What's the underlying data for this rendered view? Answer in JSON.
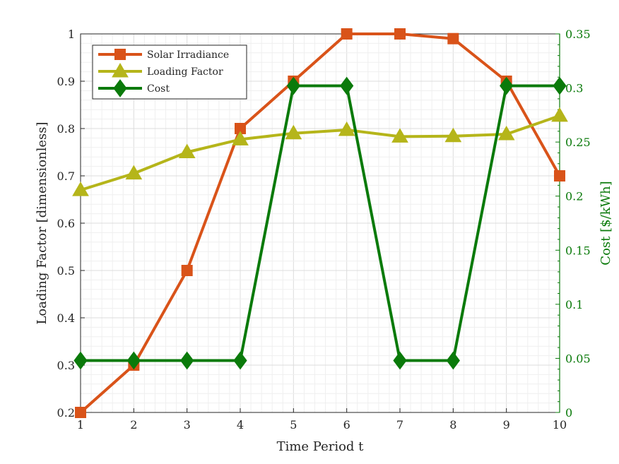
{
  "chart_data": {
    "type": "line",
    "xlabel": "Time Period t",
    "ylabel_left": "Loading Factor [dimensionless]",
    "ylabel_right": "Cost  [$/kWh]",
    "x": [
      1,
      2,
      3,
      4,
      5,
      6,
      7,
      8,
      9,
      10
    ],
    "xlim": [
      1,
      10
    ],
    "ylim_left": [
      0.2,
      1
    ],
    "ylim_right": [
      0,
      0.35
    ],
    "x_ticks": [
      "1",
      "2",
      "3",
      "4",
      "5",
      "6",
      "7",
      "8",
      "9",
      "10"
    ],
    "y_left_ticks": [
      "0.2",
      "0.3",
      "0.4",
      "0.5",
      "0.6",
      "0.7",
      "0.8",
      "0.9",
      "1"
    ],
    "y_right_ticks": [
      "0",
      "0.05",
      "0.1",
      "0.15",
      "0.2",
      "0.25",
      "0.3",
      "0.35"
    ],
    "grid": true,
    "minor_grid": true,
    "legend_position": "top-left",
    "series": [
      {
        "name": "Solar Irradiance",
        "axis": "left",
        "color": "#d95319",
        "marker": "square",
        "values": [
          0.2,
          0.3,
          0.5,
          0.8,
          0.9,
          1.0,
          1.0,
          0.99,
          0.9,
          0.7
        ]
      },
      {
        "name": "Loading Factor",
        "axis": "left",
        "color": "#b5b51a",
        "marker": "triangle",
        "values": [
          0.67,
          0.705,
          0.75,
          0.777,
          0.79,
          0.797,
          0.783,
          0.784,
          0.788,
          0.827
        ]
      },
      {
        "name": "Cost",
        "axis": "right",
        "color": "#0a7a0a",
        "marker": "diamond",
        "values": [
          0.048,
          0.048,
          0.048,
          0.048,
          0.302,
          0.302,
          0.048,
          0.048,
          0.302,
          0.302
        ]
      }
    ],
    "right_axis_color": "#0a7a0a"
  }
}
